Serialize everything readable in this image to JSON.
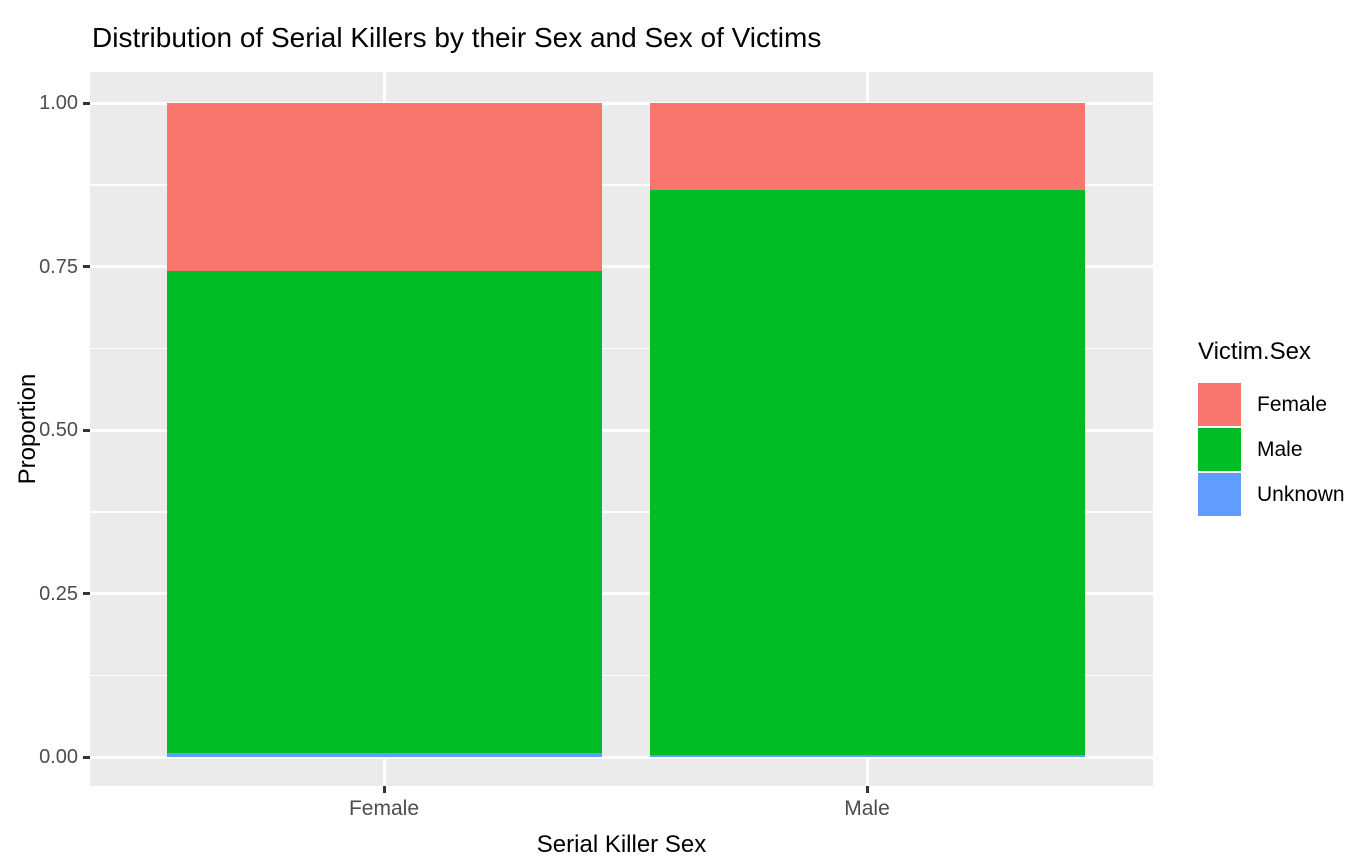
{
  "chart_data": {
    "type": "bar",
    "subtype": "stacked-fill",
    "title": "Distribution of Serial Killers by their Sex and Sex of Victims",
    "xlabel": "Serial Killer Sex",
    "ylabel": "Proportion",
    "categories": [
      "Female",
      "Male"
    ],
    "series": [
      {
        "name": "Female",
        "color": "#F8766D",
        "values": [
          0.257,
          0.133
        ]
      },
      {
        "name": "Male",
        "color": "#00BC25",
        "values": [
          0.737,
          0.864
        ]
      },
      {
        "name": "Unknown",
        "color": "#619CFF",
        "values": [
          0.006,
          0.003
        ]
      }
    ],
    "stack_bottom_to_top": [
      "Unknown",
      "Male",
      "Female"
    ],
    "ylim": [
      0,
      1
    ],
    "y_ticks": [
      {
        "value": 0.0,
        "label": "0.00"
      },
      {
        "value": 0.25,
        "label": "0.25"
      },
      {
        "value": 0.5,
        "label": "0.50"
      },
      {
        "value": 0.75,
        "label": "0.75"
      },
      {
        "value": 1.0,
        "label": "1.00"
      }
    ],
    "y_minor_values": [
      0.125,
      0.375,
      0.625,
      0.875
    ],
    "grid": true,
    "legend": {
      "title": "Victim.Sex",
      "position": "right",
      "entries": [
        {
          "label": "Female",
          "color": "#F8766D"
        },
        {
          "label": "Male",
          "color": "#00BC25"
        },
        {
          "label": "Unknown",
          "color": "#619CFF"
        }
      ]
    },
    "colors": {
      "panel_bg": "#EBEBEB",
      "gridline": "#FFFFFF",
      "tick_text": "#4D4D4D",
      "tick_mark": "#333333",
      "text": "#000000"
    }
  }
}
